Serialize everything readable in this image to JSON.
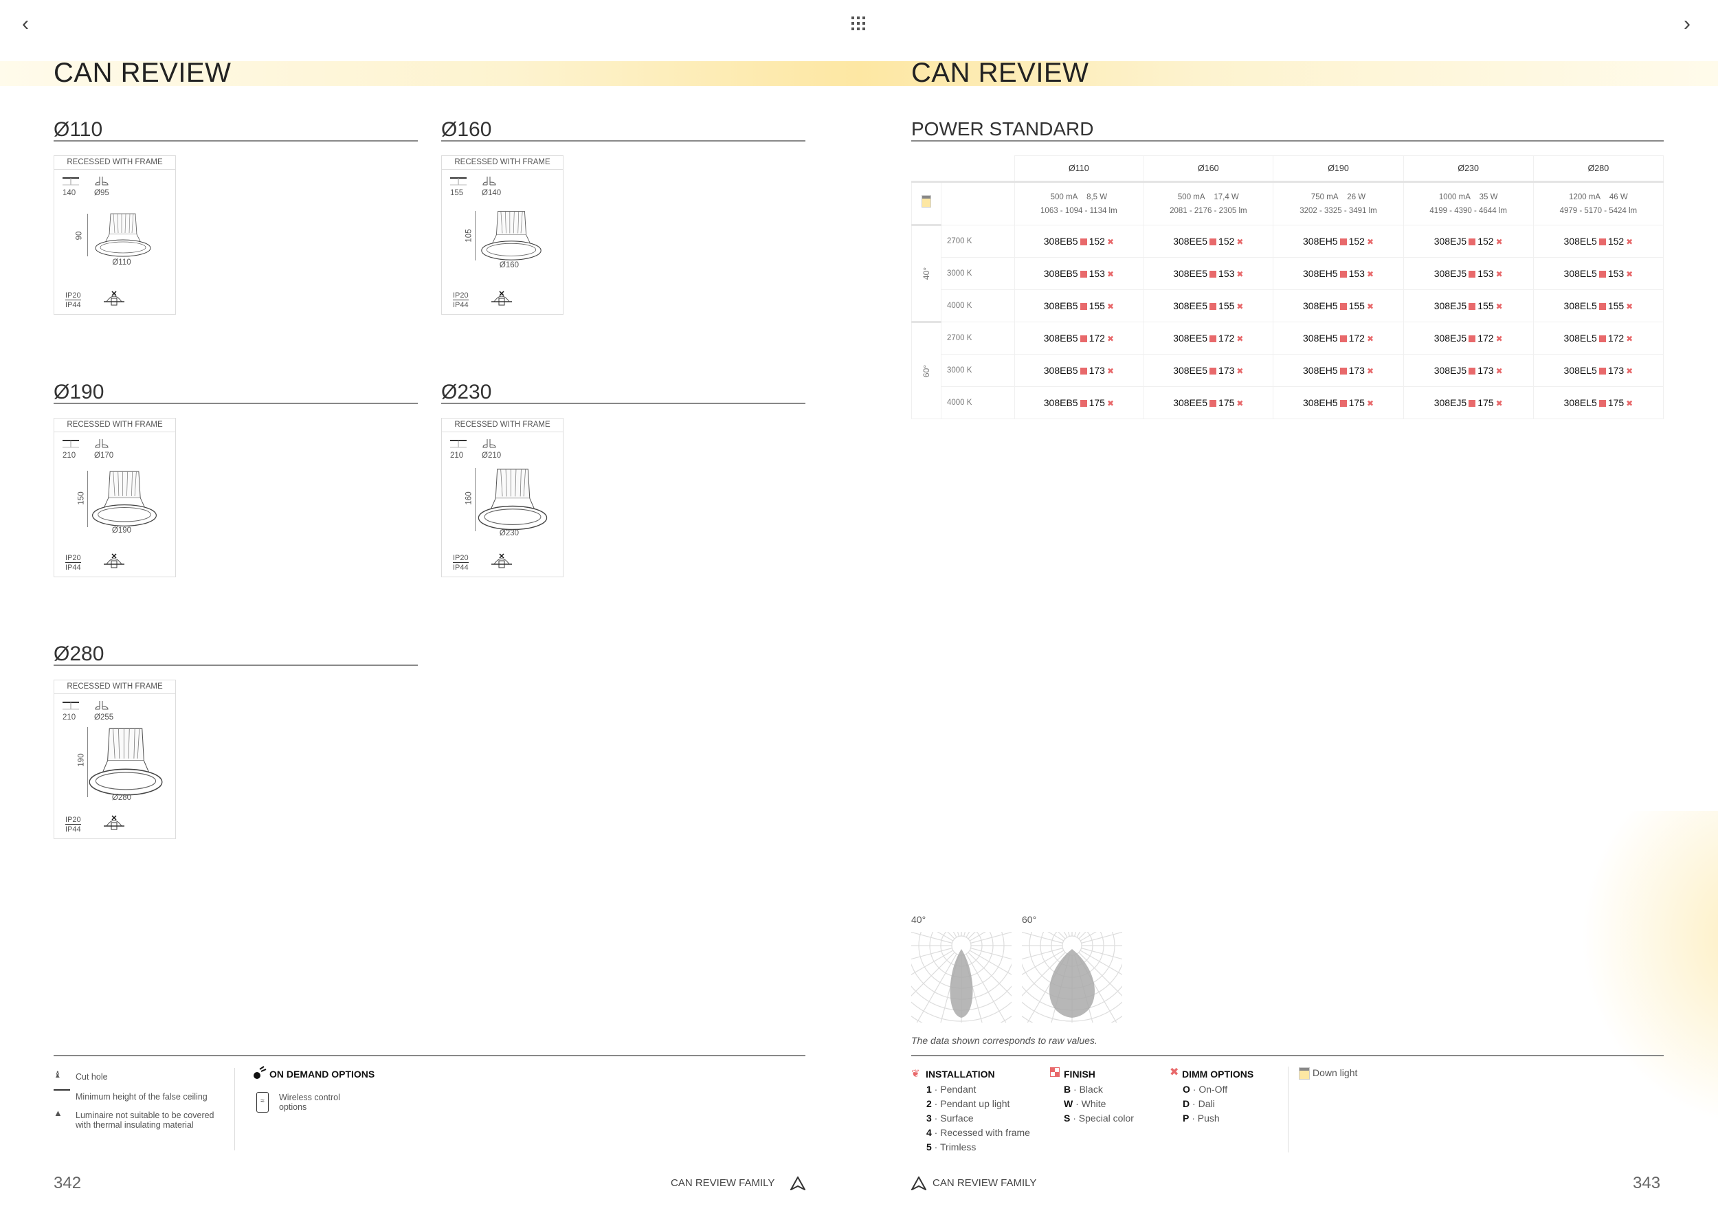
{
  "nav": {
    "prev_icon": "chevron-left-icon",
    "grid_icon": "grid-icon",
    "next_icon": "chevron-right-icon"
  },
  "left_page": {
    "title": "CAN REVIEW",
    "products": [
      {
        "title": "Ø110",
        "label": "RECESSED WITH FRAME",
        "min_height": "140",
        "cut_hole": "Ø95",
        "height": "90",
        "diameter": "Ø110",
        "ip_top": "IP20",
        "ip_bottom": "IP44"
      },
      {
        "title": "Ø160",
        "label": "RECESSED WITH FRAME",
        "min_height": "155",
        "cut_hole": "Ø140",
        "height": "105",
        "diameter": "Ø160",
        "ip_top": "IP20",
        "ip_bottom": "IP44"
      },
      {
        "title": "Ø190",
        "label": "RECESSED WITH FRAME",
        "min_height": "210",
        "cut_hole": "Ø170",
        "height": "150",
        "diameter": "Ø190",
        "ip_top": "IP20",
        "ip_bottom": "IP44"
      },
      {
        "title": "Ø230",
        "label": "RECESSED WITH FRAME",
        "min_height": "210",
        "cut_hole": "Ø210",
        "height": "160",
        "diameter": "Ø230",
        "ip_top": "IP20",
        "ip_bottom": "IP44"
      },
      {
        "title": "Ø280",
        "label": "RECESSED WITH FRAME",
        "min_height": "210",
        "cut_hole": "Ø255",
        "height": "190",
        "diameter": "Ø280",
        "ip_top": "IP20",
        "ip_bottom": "IP44"
      }
    ],
    "legend": [
      {
        "icon": "cut-hole-icon",
        "text": "Cut hole"
      },
      {
        "icon": "false-ceiling-height-icon",
        "text": "Minimum height of the false ceiling"
      },
      {
        "icon": "no-thermal-insulation-icon",
        "text": "Luminaire not suitable to be covered with thermal insulating material"
      }
    ],
    "on_demand": {
      "title": "ON DEMAND OPTIONS",
      "item": "Wireless control options"
    },
    "page_number": "342",
    "footer": "CAN REVIEW FAMILY"
  },
  "right_page": {
    "title": "CAN REVIEW",
    "section": "POWER STANDARD",
    "table": {
      "columns": [
        "Ø110",
        "Ø160",
        "Ø190",
        "Ø230",
        "Ø280"
      ],
      "specs": [
        {
          "current": "500 mA",
          "power": "8,5 W",
          "flux": "1063 - 1094 - 1134 lm"
        },
        {
          "current": "500 mA",
          "power": "17,4 W",
          "flux": "2081 - 2176 - 2305 lm"
        },
        {
          "current": "750 mA",
          "power": "26 W",
          "flux": "3202 - 3325 - 3491 lm"
        },
        {
          "current": "1000 mA",
          "power": "35 W",
          "flux": "4199 - 4390 - 4644 lm"
        },
        {
          "current": "1200 mA",
          "power": "46 W",
          "flux": "4979 - 5170 - 5424 lm"
        }
      ],
      "codes": [
        "308EB5",
        "308EE5",
        "308EH5",
        "308EJ5",
        "308EL5"
      ],
      "groups": [
        {
          "angle": "40°",
          "rows": [
            {
              "cct": "2700 K",
              "suffix": "152"
            },
            {
              "cct": "3000 K",
              "suffix": "153"
            },
            {
              "cct": "4000 K",
              "suffix": "155"
            }
          ]
        },
        {
          "angle": "60°",
          "rows": [
            {
              "cct": "2700 K",
              "suffix": "172"
            },
            {
              "cct": "3000 K",
              "suffix": "173"
            },
            {
              "cct": "4000 K",
              "suffix": "175"
            }
          ]
        }
      ]
    },
    "photometry": {
      "labels": [
        "40°",
        "60°"
      ],
      "caption": "The data shown corresponds to raw values."
    },
    "legend": {
      "installation": {
        "title": "INSTALLATION",
        "items": [
          {
            "k": "1",
            "v": "Pendant"
          },
          {
            "k": "2",
            "v": "Pendant up light"
          },
          {
            "k": "3",
            "v": "Surface"
          },
          {
            "k": "4",
            "v": "Recessed with frame"
          },
          {
            "k": "5",
            "v": "Trimless"
          }
        ]
      },
      "finish": {
        "title": "FINISH",
        "items": [
          {
            "k": "B",
            "v": "Black"
          },
          {
            "k": "W",
            "v": "White"
          },
          {
            "k": "S",
            "v": "Special color"
          }
        ]
      },
      "dimm": {
        "title": "DIMM OPTIONS",
        "items": [
          {
            "k": "O",
            "v": "On-Off"
          },
          {
            "k": "D",
            "v": "Dali"
          },
          {
            "k": "P",
            "v": "Push"
          }
        ]
      },
      "down_light": "Down light"
    },
    "page_number": "343",
    "footer": "CAN REVIEW FAMILY"
  },
  "colors": {
    "accent": "#e8696b",
    "band": "#fde7a3"
  }
}
